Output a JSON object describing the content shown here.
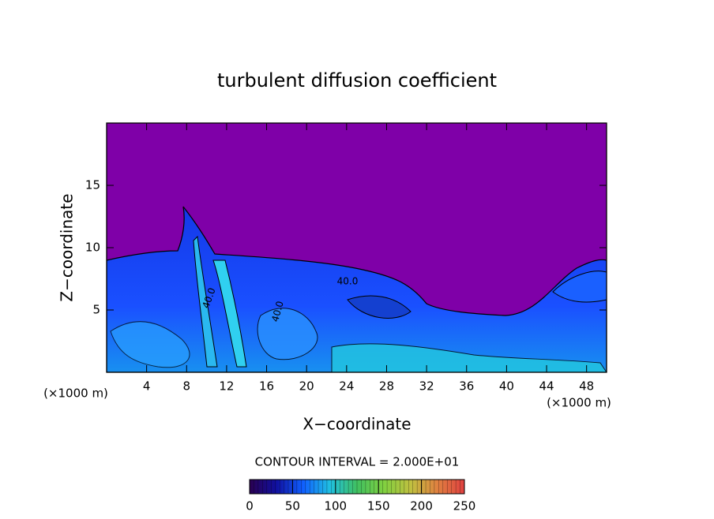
{
  "chart_data": {
    "type": "contour",
    "title": "turbulent diffusion coefficient",
    "x_label": "X−coordinate",
    "y_label": "Z−coordinate",
    "x_unit_left": "(×1000 m)",
    "x_unit_right": "(×1000 m)",
    "xlim": [
      0,
      50
    ],
    "xticks": [
      4,
      8,
      12,
      16,
      20,
      24,
      28,
      32,
      36,
      40,
      44,
      48
    ],
    "ylim": [
      0,
      20
    ],
    "yticks": [
      5,
      10,
      15
    ],
    "contour_labels": [
      "40.0",
      "40.0",
      "40.0"
    ],
    "contour_interval_text": "CONTOUR INTERVAL = 2.000E+01",
    "colorbar": {
      "lim": [
        0,
        250
      ],
      "ticks": [
        0,
        50,
        100,
        150,
        200,
        250
      ],
      "colors": [
        "#2a0050",
        "#1010a0",
        "#1060ff",
        "#20c0e0",
        "#40c060",
        "#80d040",
        "#c0c040",
        "#e08040",
        "#e04040"
      ]
    }
  }
}
